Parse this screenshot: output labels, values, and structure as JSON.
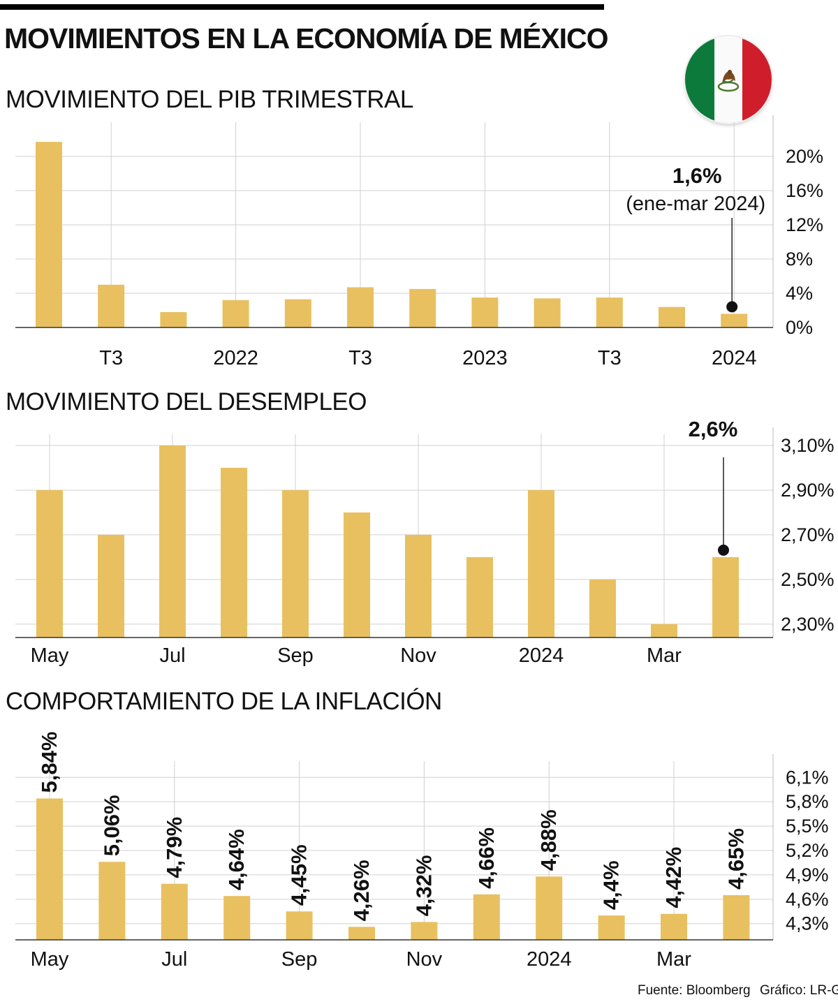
{
  "header": {
    "title": "MOVIMIENTOS EN LA ECONOMÍA DE MÉXICO"
  },
  "flag": {
    "icon": "mexico-flag-icon",
    "colors": [
      "#0b7a3a",
      "#fafafa",
      "#cf1d2b"
    ]
  },
  "accent_color": "#e8c060",
  "footer": {
    "source": "Fuente: Bloomberg",
    "credit": "Gráfico: LR-GR"
  },
  "chart_data": [
    {
      "type": "bar",
      "title": "MOVIMIENTO DEL PIB TRIMESTRAL",
      "categories": [
        "",
        "T3",
        "",
        "2022",
        "",
        "T3",
        "",
        "2023",
        "",
        "T3",
        "",
        "2024"
      ],
      "values": [
        21.7,
        5.0,
        1.8,
        3.2,
        3.3,
        4.7,
        4.5,
        3.5,
        3.4,
        3.5,
        2.4,
        1.6
      ],
      "yticks": [
        "0%",
        "4%",
        "8%",
        "12%",
        "16%",
        "20%"
      ],
      "ylim": [
        0,
        24
      ],
      "grid": true,
      "annotation": {
        "value": "1,6%",
        "note": "(ene-mar 2024)",
        "index": 11
      }
    },
    {
      "type": "bar",
      "title": "MOVIMIENTO DEL DESEMPLEO",
      "categories": [
        "May",
        "",
        "Jul",
        "",
        "Sep",
        "",
        "Nov",
        "",
        "2024",
        "",
        "Mar",
        ""
      ],
      "values": [
        2.9,
        2.7,
        3.1,
        3.0,
        2.9,
        2.8,
        2.7,
        2.6,
        2.9,
        2.5,
        2.3,
        2.6
      ],
      "yticks": [
        "2,30%",
        "2,50%",
        "2,70%",
        "2,90%",
        "3,10%"
      ],
      "ylim": [
        2.24,
        3.15
      ],
      "grid": true,
      "annotation": {
        "value": "2,6%",
        "index": 11
      }
    },
    {
      "type": "bar",
      "title": "COMPORTAMIENTO DE LA INFLACIÓN",
      "categories": [
        "May",
        "",
        "Jul",
        "",
        "Sep",
        "",
        "Nov",
        "",
        "2024",
        "",
        "Mar",
        ""
      ],
      "values": [
        5.84,
        5.06,
        4.79,
        4.64,
        4.45,
        4.26,
        4.32,
        4.66,
        4.88,
        4.4,
        4.42,
        4.65
      ],
      "data_labels": [
        "5,84%",
        "5,06%",
        "4,79%",
        "4,64%",
        "4,45%",
        "4,26%",
        "4,32%",
        "4,66%",
        "4,88%",
        "4,4%",
        "4,42%",
        "4,65%"
      ],
      "yticks": [
        "4,3%",
        "4,6%",
        "4,9%",
        "5,2%",
        "5,5%",
        "5,8%",
        "6,1%"
      ],
      "ylim": [
        4.1,
        6.3
      ],
      "grid": true
    }
  ]
}
